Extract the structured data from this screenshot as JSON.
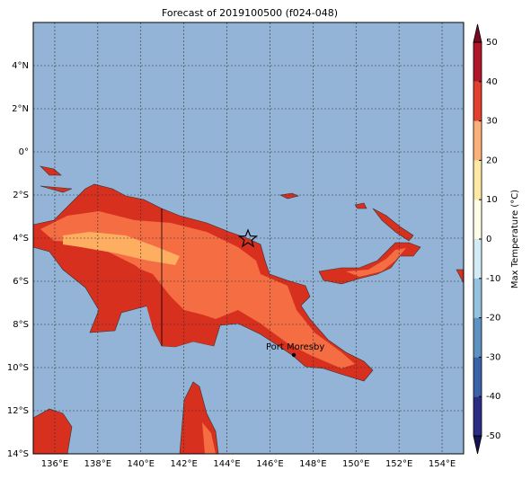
{
  "map": {
    "title": "Forecast of 2019100500 (f024-048)",
    "xlim": [
      135,
      155
    ],
    "ylim": [
      -14,
      6
    ],
    "xticks": [
      {
        "value": 136,
        "label": "136°E"
      },
      {
        "value": 138,
        "label": "138°E"
      },
      {
        "value": 140,
        "label": "140°E"
      },
      {
        "value": 142,
        "label": "142°E"
      },
      {
        "value": 144,
        "label": "144°E"
      },
      {
        "value": 146,
        "label": "146°E"
      },
      {
        "value": 148,
        "label": "148°E"
      },
      {
        "value": 150,
        "label": "150°E"
      },
      {
        "value": 152,
        "label": "152°E"
      },
      {
        "value": 154,
        "label": "154°E"
      }
    ],
    "yticks": [
      {
        "value": 4,
        "label": "4°N"
      },
      {
        "value": 2,
        "label": "2°N"
      },
      {
        "value": 0,
        "label": "0°"
      },
      {
        "value": -2,
        "label": "2°S"
      },
      {
        "value": -4,
        "label": "4°S"
      },
      {
        "value": -6,
        "label": "6°S"
      },
      {
        "value": -8,
        "label": "8°S"
      },
      {
        "value": -10,
        "label": "10°S"
      },
      {
        "value": -12,
        "label": "12°S"
      },
      {
        "value": -14,
        "label": "14°S"
      }
    ],
    "grid": true,
    "annotation": "Port Moresby",
    "colorbar": {
      "label": "Max Temperature (°C)",
      "lim": [
        -50,
        50
      ],
      "ticks": [
        -50,
        -40,
        -30,
        -20,
        -10,
        0,
        10,
        20,
        30,
        40,
        50
      ],
      "colors": [
        "#2b2c86",
        "#3a62a9",
        "#5d92c3",
        "#93c3de",
        "#d3ebf4",
        "#fefee6",
        "#fee9a4",
        "#fdb07a",
        "#e0402d",
        "#b2152a"
      ],
      "extend_colors": [
        "#141450",
        "#7a0a24"
      ]
    }
  }
}
